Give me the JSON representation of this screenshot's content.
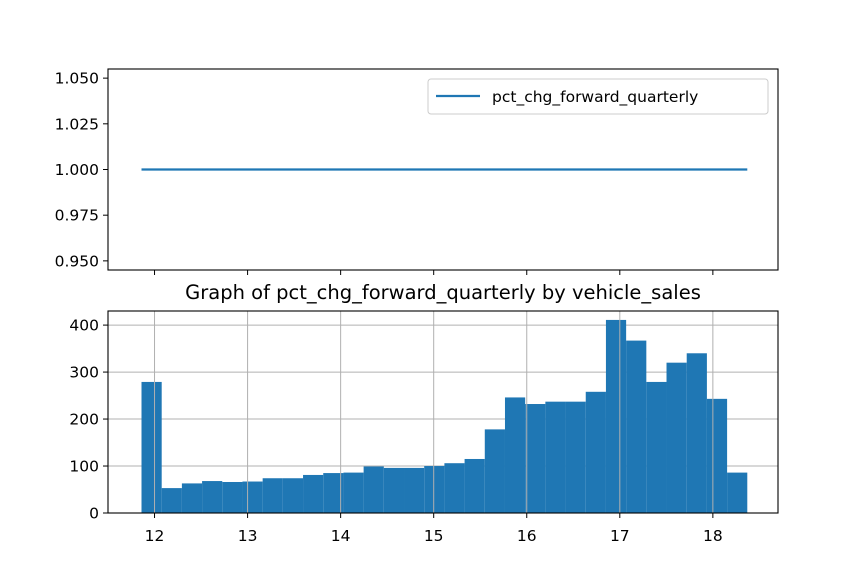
{
  "chart_data": [
    {
      "type": "line",
      "title": "",
      "xlabel": "",
      "ylabel": "",
      "ylim": [
        0.945,
        1.055
      ],
      "xlim": [
        11.5,
        18.7
      ],
      "yticks": [
        "0.950",
        "0.975",
        "1.000",
        "1.025",
        "1.050"
      ],
      "ytick_values": [
        0.95,
        0.975,
        1.0,
        1.025,
        1.05
      ],
      "xticks": [
        12,
        13,
        14,
        15,
        16,
        17,
        18
      ],
      "grid": false,
      "legend": "top-right",
      "series": [
        {
          "name": "pct_chg_forward_quarterly",
          "color": "#1f77b4",
          "x": [
            11.86,
            18.37
          ],
          "values": [
            1.0,
            1.0
          ]
        }
      ]
    },
    {
      "type": "bar",
      "title": "Graph of pct_chg_forward_quarterly by vehicle_sales",
      "xlabel": "",
      "ylabel": "",
      "ylim": [
        0,
        430
      ],
      "xlim": [
        11.5,
        18.7
      ],
      "yticks": [
        "0",
        "100",
        "200",
        "300",
        "400"
      ],
      "ytick_values": [
        0,
        100,
        200,
        300,
        400
      ],
      "xticks": [
        "12",
        "13",
        "14",
        "15",
        "16",
        "17",
        "18"
      ],
      "xtick_values": [
        12,
        13,
        14,
        15,
        16,
        17,
        18
      ],
      "grid": true,
      "color": "#1f77b4",
      "bin_edges": [
        11.86,
        12.077,
        12.294,
        12.511,
        12.728,
        12.945,
        13.162,
        13.379,
        13.596,
        13.813,
        14.03,
        14.247,
        14.464,
        14.681,
        14.898,
        15.115,
        15.332,
        15.549,
        15.766,
        15.983,
        16.2,
        16.417,
        16.634,
        16.851,
        17.068,
        17.285,
        17.502,
        17.719,
        17.936,
        18.153,
        18.37
      ],
      "values": [
        279,
        53,
        63,
        68,
        66,
        67,
        74,
        74,
        81,
        85,
        86,
        99,
        96,
        96,
        100,
        106,
        115,
        178,
        246,
        232,
        237,
        237,
        258,
        411,
        367,
        279,
        320,
        340,
        243,
        86
      ]
    }
  ]
}
